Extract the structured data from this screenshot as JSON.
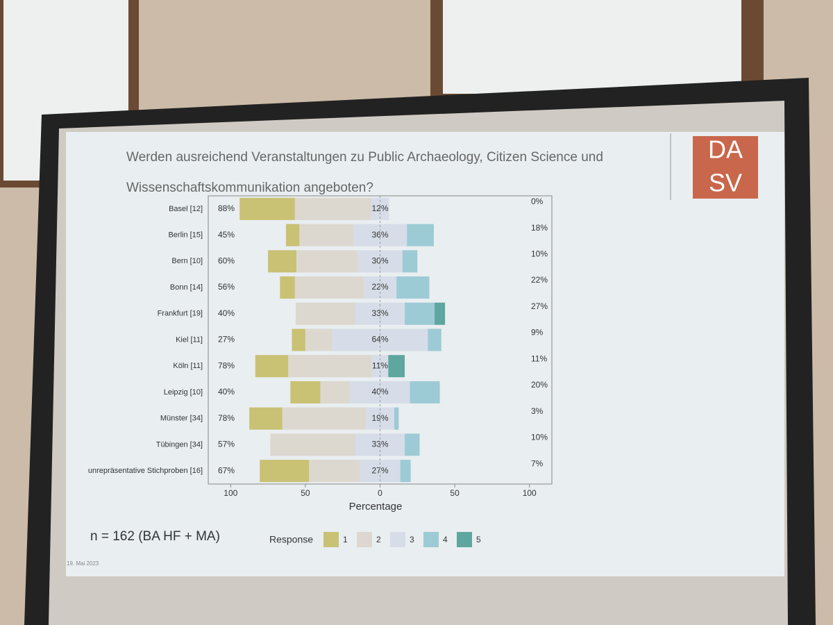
{
  "chart_data": {
    "type": "diverging-bar",
    "title": [
      "Werden ausreichend Veranstaltungen zu Public Archaeology, Citizen Science und",
      "Wissenschaftskommunikation angeboten?"
    ],
    "logo": [
      "DA",
      "SV"
    ],
    "xlabel": "Percentage",
    "legend_title": "Response",
    "note": "n = 162 (BA HF + MA)",
    "date": "19. Mai 2023",
    "categories": [
      "Basel [12]",
      "Berlin [15]",
      "Bern [10]",
      "Bonn [14]",
      "Frankfurt [19]",
      "Kiel [11]",
      "Köln [11]",
      "Leipzig [10]",
      "Münster [34]",
      "Tübingen [34]",
      "unrepräsentative Stichproben [16]"
    ],
    "series": [
      {
        "name": "1",
        "color": "#c9c174",
        "values": [
          37,
          9,
          19,
          10,
          0,
          9,
          22,
          20,
          22,
          0,
          33
        ]
      },
      {
        "name": "2",
        "color": "#dcd8cf",
        "values": [
          51,
          36,
          41,
          46,
          40,
          18,
          56,
          20,
          56,
          57,
          34
        ]
      },
      {
        "name": "3",
        "color": "#d6dde8",
        "values": [
          12,
          36,
          30,
          22,
          33,
          64,
          11,
          40,
          19,
          33,
          27
        ],
        "value_labels": [
          "12%",
          "36%",
          "30%",
          "22%",
          "33%",
          "64%",
          "11%",
          "40%",
          "19%",
          "33%",
          "27%"
        ]
      },
      {
        "name": "4",
        "color": "#9dcbd5",
        "values": [
          0,
          18,
          10,
          22,
          20,
          9,
          0,
          20,
          3,
          10,
          7
        ]
      },
      {
        "name": "5",
        "color": "#5ea69f",
        "values": [
          0,
          0,
          0,
          0,
          7,
          0,
          11,
          0,
          0,
          0,
          0
        ]
      }
    ],
    "left_labels": [
      "88%",
      "45%",
      "60%",
      "56%",
      "40%",
      "27%",
      "78%",
      "40%",
      "78%",
      "57%",
      "67%"
    ],
    "right_labels": [
      "0%",
      "18%",
      "10%",
      "22%",
      "27%",
      "9%",
      "11%",
      "20%",
      "3%",
      "10%",
      "7%"
    ],
    "xlim": [
      -115,
      115
    ],
    "xticks": [
      {
        "value": -100,
        "label": "100"
      },
      {
        "value": -50,
        "label": "50"
      },
      0,
      50,
      100
    ]
  }
}
